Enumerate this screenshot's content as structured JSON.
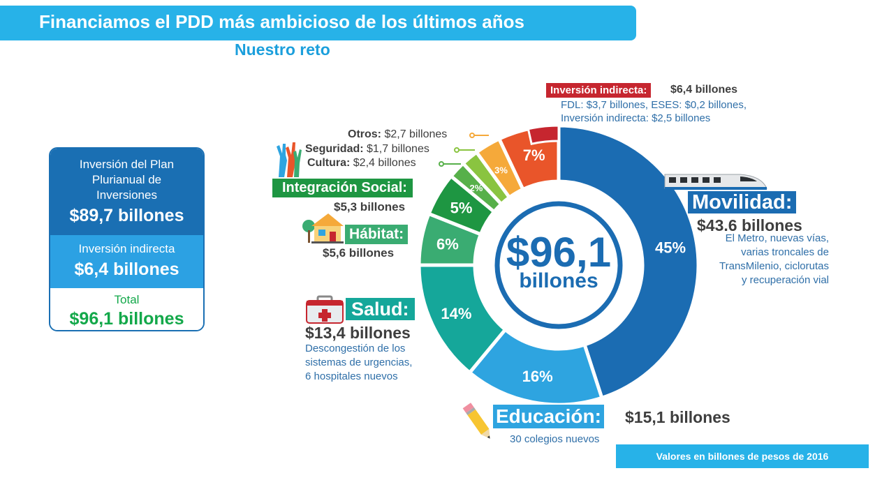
{
  "title": "Financiamos el PDD más ambicioso de los últimos años",
  "subtitle": "Nuestro reto",
  "summary": {
    "plan_label": "Inversión del Plan Plurianual de Inversiones",
    "plan_value": "$89,7 billones",
    "indirect_label": "Inversión indirecta",
    "indirect_value": "$6,4 billones",
    "total_label": "Total",
    "total_value": "$96,1 billones"
  },
  "center": {
    "amount": "$96,1",
    "unit": "billones"
  },
  "footer": "Valores en billones de pesos de 2016",
  "labels": {
    "movilidad_tag": "Movilidad:",
    "movilidad_value": "$43.6 billones",
    "movilidad_note": [
      "El Metro, nuevas vías,",
      "varias troncales de",
      "TransMilenio, ciclorutas",
      "y recuperación vial"
    ],
    "educacion_tag": "Educación:",
    "educacion_value": "$15,1 billones",
    "educacion_note": "30 colegios nuevos",
    "salud_tag": "Salud:",
    "salud_value": "$13,4 billones",
    "salud_note": [
      "Descongestión de los",
      "sistemas de urgencias,",
      "6 hospitales nuevos"
    ],
    "habitat_tag": "Hábitat:",
    "habitat_value": "$5,6 billones",
    "integracion_tag": "Integración Social:",
    "integracion_value": "$5,3 billones",
    "cultura_name": "Cultura:",
    "cultura_value": " $2,4 billones",
    "seguridad_name": "Seguridad:",
    "seguridad_value": " $1,7 billones",
    "otros_name": "Otros:",
    "otros_value": " $2,7 billones",
    "indirecta_tag": "Inversión indirecta:",
    "indirecta_value": " $6,4 billones",
    "indirecta_note": [
      "FDL: $3,7 billones, ESES: $0,2 billones,",
      "Inversión indirecta: $2,5 billones"
    ]
  },
  "chart_data": {
    "type": "pie",
    "variant": "donut",
    "categories": [
      "Movilidad",
      "Educación",
      "Salud",
      "Hábitat",
      "Integración Social",
      "Cultura",
      "Seguridad",
      "Otros",
      "Inversión indirecta"
    ],
    "values": [
      45,
      16,
      14,
      6,
      5,
      2,
      2,
      3,
      7
    ],
    "value_labels": [
      "45%",
      "16%",
      "14%",
      "6%",
      "5%",
      "2%",
      "",
      "3%",
      "7%"
    ],
    "amounts": [
      43.6,
      15.1,
      13.4,
      5.6,
      5.3,
      2.4,
      1.7,
      2.7,
      6.4
    ],
    "colors": [
      "#1b6cb2",
      "#2ea4e0",
      "#15a79a",
      "#3aac72",
      "#1e9642",
      "#57b04a",
      "#8ac440",
      "#f5a93a",
      "#e9552a"
    ],
    "indirect_split_color": "#c6262f",
    "legend": "none"
  }
}
